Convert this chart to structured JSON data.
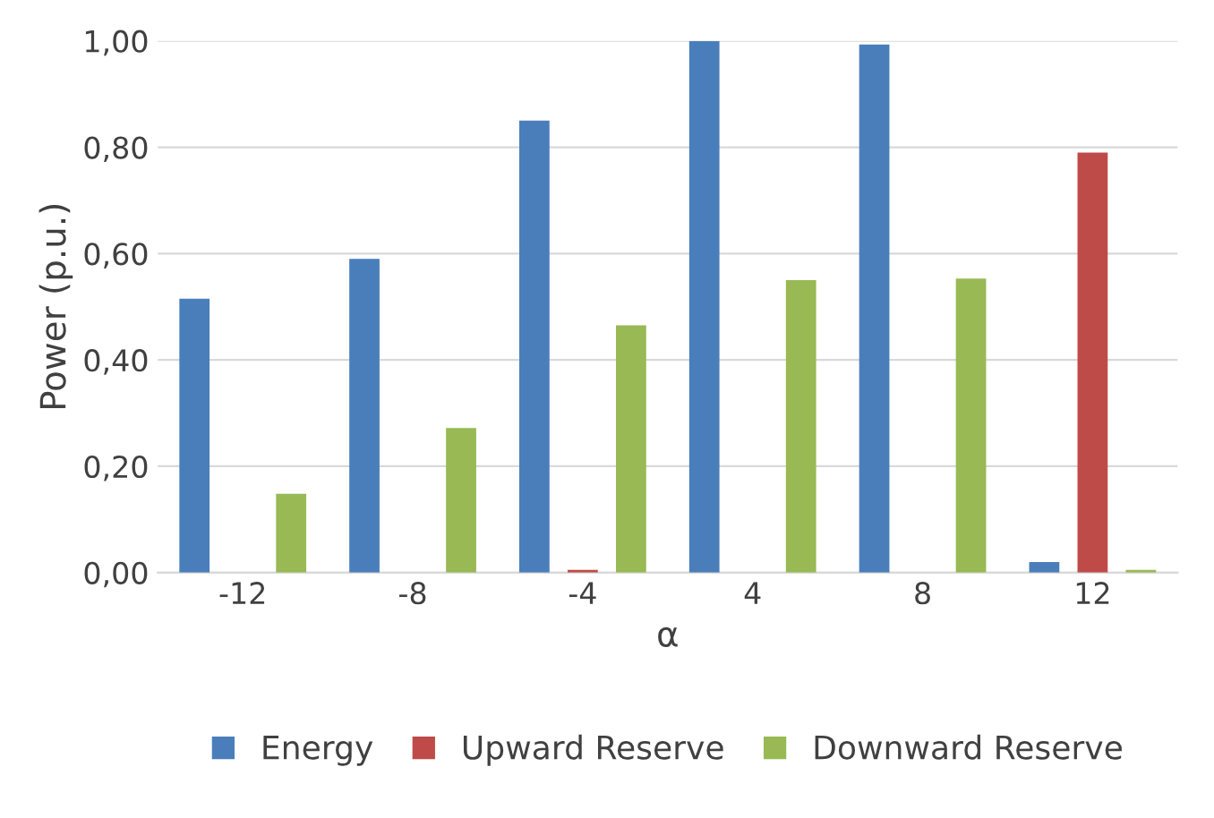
{
  "chart_data": {
    "type": "bar",
    "xlabel": "α",
    "ylabel": "Power (p.u.)",
    "categories": [
      "-12",
      "-8",
      "-4",
      "4",
      "8",
      "12"
    ],
    "series": [
      {
        "name": "Energy",
        "color": "#4a7ebb",
        "values": [
          0.515,
          0.59,
          0.85,
          1.0,
          0.993,
          0.02
        ]
      },
      {
        "name": "Upward Reserve",
        "color": "#be4b48",
        "values": [
          0,
          0,
          0.005,
          0,
          0,
          0.79
        ]
      },
      {
        "name": "Downward Reserve",
        "color": "#98b954",
        "values": [
          0.148,
          0.272,
          0.465,
          0.55,
          0.553,
          0.005
        ]
      }
    ],
    "ylim": [
      0,
      1.0
    ],
    "yticks": [
      {
        "value": 0,
        "label": "0,00"
      },
      {
        "value": 0.2,
        "label": "0,20"
      },
      {
        "value": 0.4,
        "label": "0,40"
      },
      {
        "value": 0.6,
        "label": "0,60"
      },
      {
        "value": 0.8,
        "label": "0,80"
      },
      {
        "value": 1.0,
        "label": "1,00"
      }
    ],
    "grid": "y",
    "legend": "bottom"
  }
}
